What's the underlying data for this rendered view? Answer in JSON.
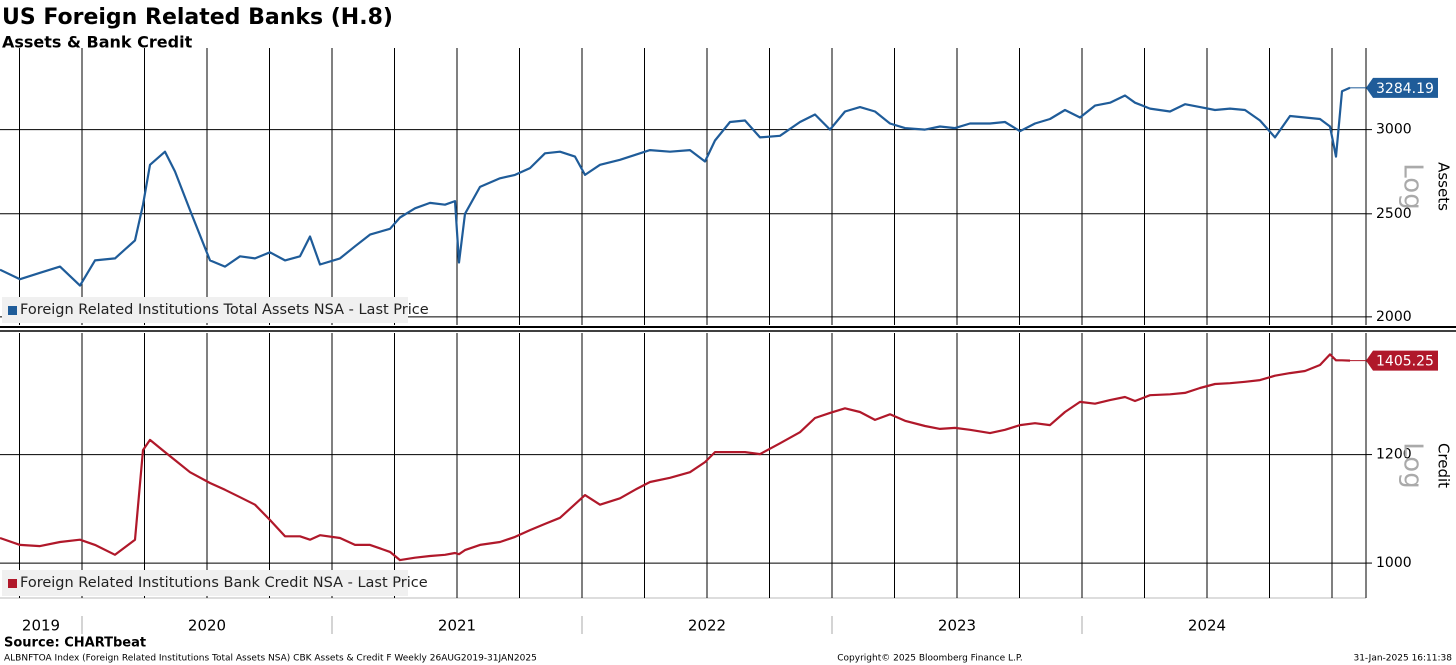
{
  "title": "US Foreign Related Banks (H.8)",
  "subtitle": "Assets & Bank Credit",
  "source": "Source: CHARTbeat",
  "footer": {
    "description": "ALBNFTOA Index (Foreign Related Institutions Total Assets NSA) CBK Assets & Credit F  Weekly 26AUG2019-31JAN2025",
    "copyright": "Copyright© 2025 Bloomberg Finance L.P.",
    "timestamp": "31-Jan-2025 16:11:38"
  },
  "chart_data": [
    {
      "type": "line",
      "ylabel": "Assets",
      "scale_label": "Log",
      "log": true,
      "grid": true,
      "x": [
        2019.672,
        2019.752,
        2019.832,
        2019.912,
        2019.992,
        2020.052,
        2020.132,
        2020.212,
        2020.244,
        2020.272,
        2020.332,
        2020.372,
        2020.432,
        2020.512,
        2020.572,
        2020.632,
        2020.692,
        2020.752,
        2020.812,
        2020.872,
        2020.912,
        2020.952,
        2021.032,
        2021.092,
        2021.152,
        2021.232,
        2021.272,
        2021.332,
        2021.392,
        2021.452,
        2021.492,
        2021.508,
        2021.532,
        2021.592,
        2021.672,
        2021.732,
        2021.792,
        2021.852,
        2021.912,
        2021.972,
        2022.012,
        2022.072,
        2022.152,
        2022.212,
        2022.272,
        2022.352,
        2022.432,
        2022.492,
        2022.532,
        2022.592,
        2022.652,
        2022.712,
        2022.792,
        2022.872,
        2022.932,
        2022.992,
        2023.052,
        2023.112,
        2023.172,
        2023.232,
        2023.292,
        2023.372,
        2023.432,
        2023.492,
        2023.552,
        2023.632,
        2023.692,
        2023.752,
        2023.812,
        2023.872,
        2023.932,
        2023.992,
        2024.052,
        2024.112,
        2024.172,
        2024.212,
        2024.272,
        2024.352,
        2024.412,
        2024.472,
        2024.532,
        2024.592,
        2024.652,
        2024.712,
        2024.772,
        2024.832,
        2024.892,
        2024.952,
        2024.992,
        2025.016,
        2025.04,
        2025.072
      ],
      "xlim": [
        2019.672,
        2025.136
      ],
      "ylim": [
        1965,
        3580
      ],
      "yticks": [
        2000,
        2500,
        3000
      ],
      "series": [
        {
          "name": "Foreign Related Institutions Total Assets NSA - Last Price",
          "color": "#1f5c99",
          "values": [
            2215,
            2170,
            2200,
            2230,
            2140,
            2260,
            2270,
            2360,
            2550,
            2780,
            2860,
            2740,
            2520,
            2260,
            2230,
            2280,
            2270,
            2300,
            2260,
            2280,
            2380,
            2240,
            2270,
            2330,
            2390,
            2420,
            2480,
            2530,
            2560,
            2550,
            2570,
            2250,
            2500,
            2650,
            2700,
            2720,
            2760,
            2850,
            2860,
            2830,
            2720,
            2780,
            2810,
            2840,
            2870,
            2860,
            2870,
            2800,
            2930,
            3050,
            3060,
            2950,
            2960,
            3050,
            3100,
            3000,
            3120,
            3150,
            3120,
            3040,
            3010,
            3000,
            3020,
            3010,
            3040,
            3040,
            3050,
            2990,
            3040,
            3070,
            3130,
            3080,
            3160,
            3180,
            3230,
            3180,
            3140,
            3120,
            3170,
            3150,
            3130,
            3140,
            3130,
            3060,
            2950,
            3090,
            3080,
            3070,
            3020,
            2830,
            3260,
            3284.19
          ]
        }
      ]
    },
    {
      "type": "line",
      "ylabel": "Credit",
      "scale_label": "Log",
      "log": true,
      "grid": true,
      "x": [
        2019.672,
        2019.752,
        2019.832,
        2019.912,
        2019.992,
        2020.052,
        2020.132,
        2020.212,
        2020.244,
        2020.272,
        2020.332,
        2020.372,
        2020.432,
        2020.512,
        2020.572,
        2020.632,
        2020.692,
        2020.752,
        2020.812,
        2020.872,
        2020.912,
        2020.952,
        2021.032,
        2021.092,
        2021.152,
        2021.232,
        2021.272,
        2021.332,
        2021.392,
        2021.452,
        2021.492,
        2021.508,
        2021.532,
        2021.592,
        2021.672,
        2021.732,
        2021.792,
        2021.852,
        2021.912,
        2021.972,
        2022.012,
        2022.072,
        2022.152,
        2022.212,
        2022.272,
        2022.352,
        2022.432,
        2022.492,
        2022.532,
        2022.592,
        2022.652,
        2022.712,
        2022.792,
        2022.872,
        2022.932,
        2022.992,
        2023.052,
        2023.112,
        2023.172,
        2023.232,
        2023.292,
        2023.372,
        2023.432,
        2023.492,
        2023.552,
        2023.632,
        2023.692,
        2023.752,
        2023.812,
        2023.872,
        2023.932,
        2023.992,
        2024.052,
        2024.112,
        2024.172,
        2024.212,
        2024.272,
        2024.352,
        2024.412,
        2024.472,
        2024.532,
        2024.592,
        2024.652,
        2024.712,
        2024.772,
        2024.832,
        2024.892,
        2024.952,
        2024.992,
        2025.016,
        2025.04,
        2025.072
      ],
      "xlim": [
        2019.672,
        2025.136
      ],
      "xticks": [
        {
          "value": 2019,
          "label": "2019"
        },
        {
          "value": 2020,
          "label": "2020"
        },
        {
          "value": 2021,
          "label": "2021"
        },
        {
          "value": 2022,
          "label": "2022"
        },
        {
          "value": 2023,
          "label": "2023"
        },
        {
          "value": 2024,
          "label": "2024"
        }
      ],
      "ylim": [
        943,
        1472
      ],
      "yticks": [
        1000,
        1200
      ],
      "series": [
        {
          "name": "Foreign Related Institutions Bank Credit NSA - Last Price",
          "color": "#b0182a",
          "values": [
            1043,
            1031,
            1029,
            1036,
            1040,
            1031,
            1014,
            1040,
            1209,
            1230,
            1205,
            1189,
            1165,
            1144,
            1131,
            1117,
            1103,
            1075,
            1046,
            1046,
            1040,
            1048,
            1043,
            1031,
            1031,
            1019,
            1005,
            1009,
            1012,
            1014,
            1017,
            1015,
            1022,
            1031,
            1036,
            1045,
            1057,
            1068,
            1079,
            1104,
            1121,
            1103,
            1115,
            1131,
            1146,
            1154,
            1165,
            1185,
            1205,
            1205,
            1205,
            1201,
            1223,
            1246,
            1276,
            1287,
            1297,
            1289,
            1272,
            1284,
            1270,
            1259,
            1253,
            1255,
            1251,
            1244,
            1251,
            1261,
            1265,
            1261,
            1289,
            1311,
            1307,
            1315,
            1322,
            1313,
            1326,
            1328,
            1331,
            1342,
            1351,
            1353,
            1356,
            1360,
            1370,
            1376,
            1381,
            1395,
            1420,
            1406,
            1406,
            1405.25
          ]
        }
      ]
    }
  ]
}
